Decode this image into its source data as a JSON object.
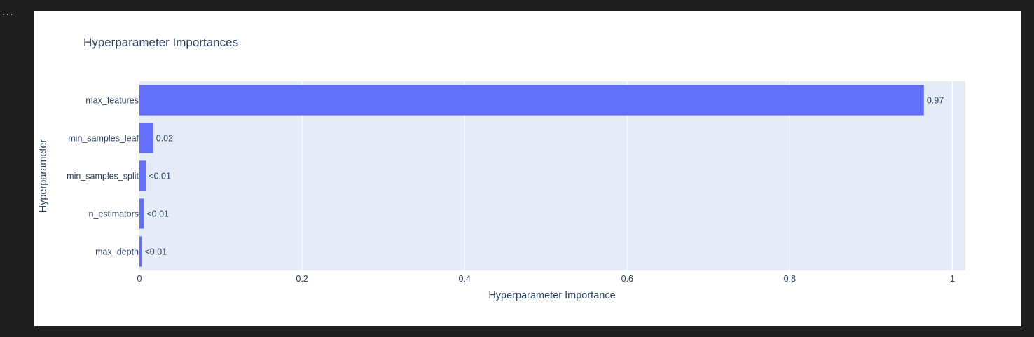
{
  "cell": {
    "more_icon_text": "..."
  },
  "chart_data": {
    "type": "bar",
    "orientation": "horizontal",
    "title": "Hyperparameter Importances",
    "xlabel": "Hyperparameter Importance",
    "ylabel": "Hyperparameter",
    "categories": [
      "max_features",
      "min_samples_leaf",
      "min_samples_split",
      "n_estimators",
      "max_depth"
    ],
    "values": [
      0.965,
      0.017,
      0.008,
      0.0055,
      0.003
    ],
    "value_labels": [
      "0.97",
      "0.02",
      "<0.01",
      "<0.01",
      "<0.01"
    ],
    "xlim": [
      0,
      1.016
    ],
    "xticks": [
      0,
      0.2,
      0.4,
      0.6,
      0.8,
      1
    ],
    "xtick_labels": [
      "0",
      "0.2",
      "0.4",
      "0.6",
      "0.8",
      "1"
    ],
    "grid": true,
    "colors": {
      "bar": "#636efa",
      "plot_bg": "#e5ecf6",
      "text": "#2a3f5f",
      "grid": "#ffffff"
    }
  }
}
